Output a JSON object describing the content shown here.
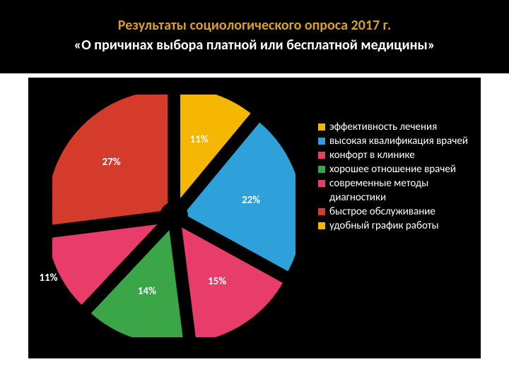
{
  "title": {
    "line1": "Результаты социологического  опроса 2017 г.",
    "line2": "«О причинах выбора платной или бесплатной медицины»",
    "line1_color": "#d8a028",
    "line2_color": "#ffffff",
    "fontsize": 20
  },
  "chart": {
    "type": "pie",
    "background_color": "#000000",
    "radius": 170,
    "explode_gap": 12,
    "start_angle_deg": -90,
    "spoke_color": "#000000",
    "spoke_width": 18,
    "label_color": "#ffffff",
    "label_fontsize": 15,
    "legend_fontsize": 15,
    "slices": [
      {
        "label": "эффективность лечения",
        "value": 11,
        "display": "11%",
        "color": "#f5b600"
      },
      {
        "label": "высокая квалификация врачей",
        "value": 22,
        "display": "22%",
        "color": "#2ea0da"
      },
      {
        "label": "конфорт в клинике",
        "value": 15,
        "display": "15%",
        "color": "#e83d6a"
      },
      {
        "label": "хорошее отношение врачей",
        "value": 14,
        "display": "14%",
        "color": "#3aa648"
      },
      {
        "label": "современные методы диагностики",
        "value": 11,
        "display": "11%",
        "color": "#e83d6a",
        "hide_label": true
      },
      {
        "label": "быстрое обслуживание",
        "value": 27,
        "display": "27%",
        "color": "#d43b2a"
      },
      {
        "label": "удобный график работы",
        "value": 0,
        "display": "",
        "color": "#f5b600"
      }
    ],
    "extra_labels": [
      {
        "text": "11%",
        "slice_index": 4,
        "place": "outer"
      }
    ]
  }
}
